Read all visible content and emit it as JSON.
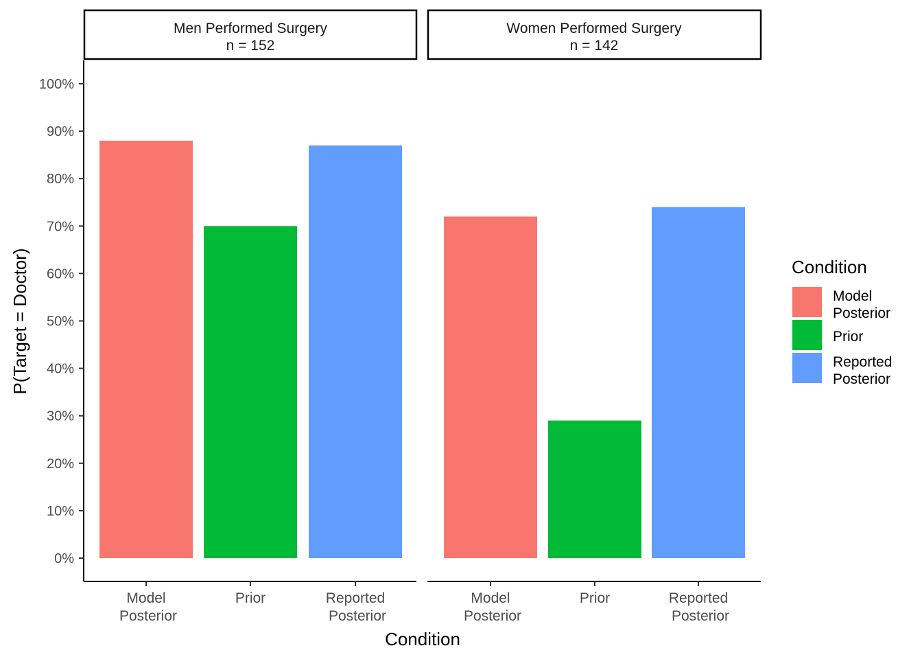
{
  "chart_data": {
    "type": "bar",
    "facets": [
      {
        "title_line1": "Men Performed Surgery",
        "title_line2": "n = 152",
        "categories": [
          {
            "line1": "Model",
            "line2": "Posterior",
            "key": "model"
          },
          {
            "line1": "Prior",
            "line2": "",
            "key": "prior"
          },
          {
            "line1": "Reported",
            "line2": "Posterior",
            "key": "reported"
          }
        ],
        "values": [
          88,
          70,
          87
        ]
      },
      {
        "title_line1": "Women Performed Surgery",
        "title_line2": "n = 142",
        "categories": [
          {
            "line1": "Model",
            "line2": "Posterior",
            "key": "model"
          },
          {
            "line1": "Prior",
            "line2": "",
            "key": "prior"
          },
          {
            "line1": "Reported",
            "line2": "Posterior",
            "key": "reported"
          }
        ],
        "values": [
          72,
          29,
          74
        ]
      }
    ],
    "xlabel": "Condition",
    "ylabel": "P(Target = Doctor)",
    "ylim": [
      0,
      100
    ],
    "yticks": [
      "0%",
      "10%",
      "20%",
      "30%",
      "40%",
      "50%",
      "60%",
      "70%",
      "80%",
      "90%",
      "100%"
    ],
    "grid": false,
    "legend": {
      "title": "Condition",
      "position": "right",
      "entries": [
        {
          "line1": "Model",
          "line2": " Posterior",
          "color": "#F8766D"
        },
        {
          "line1": "Prior",
          "line2": "",
          "color": "#00BA38"
        },
        {
          "line1": "Reported",
          "line2": " Posterior",
          "color": "#619CFF"
        }
      ]
    },
    "colors": {
      "model": "#F8766D",
      "prior": "#00BA38",
      "reported": "#619CFF"
    }
  }
}
